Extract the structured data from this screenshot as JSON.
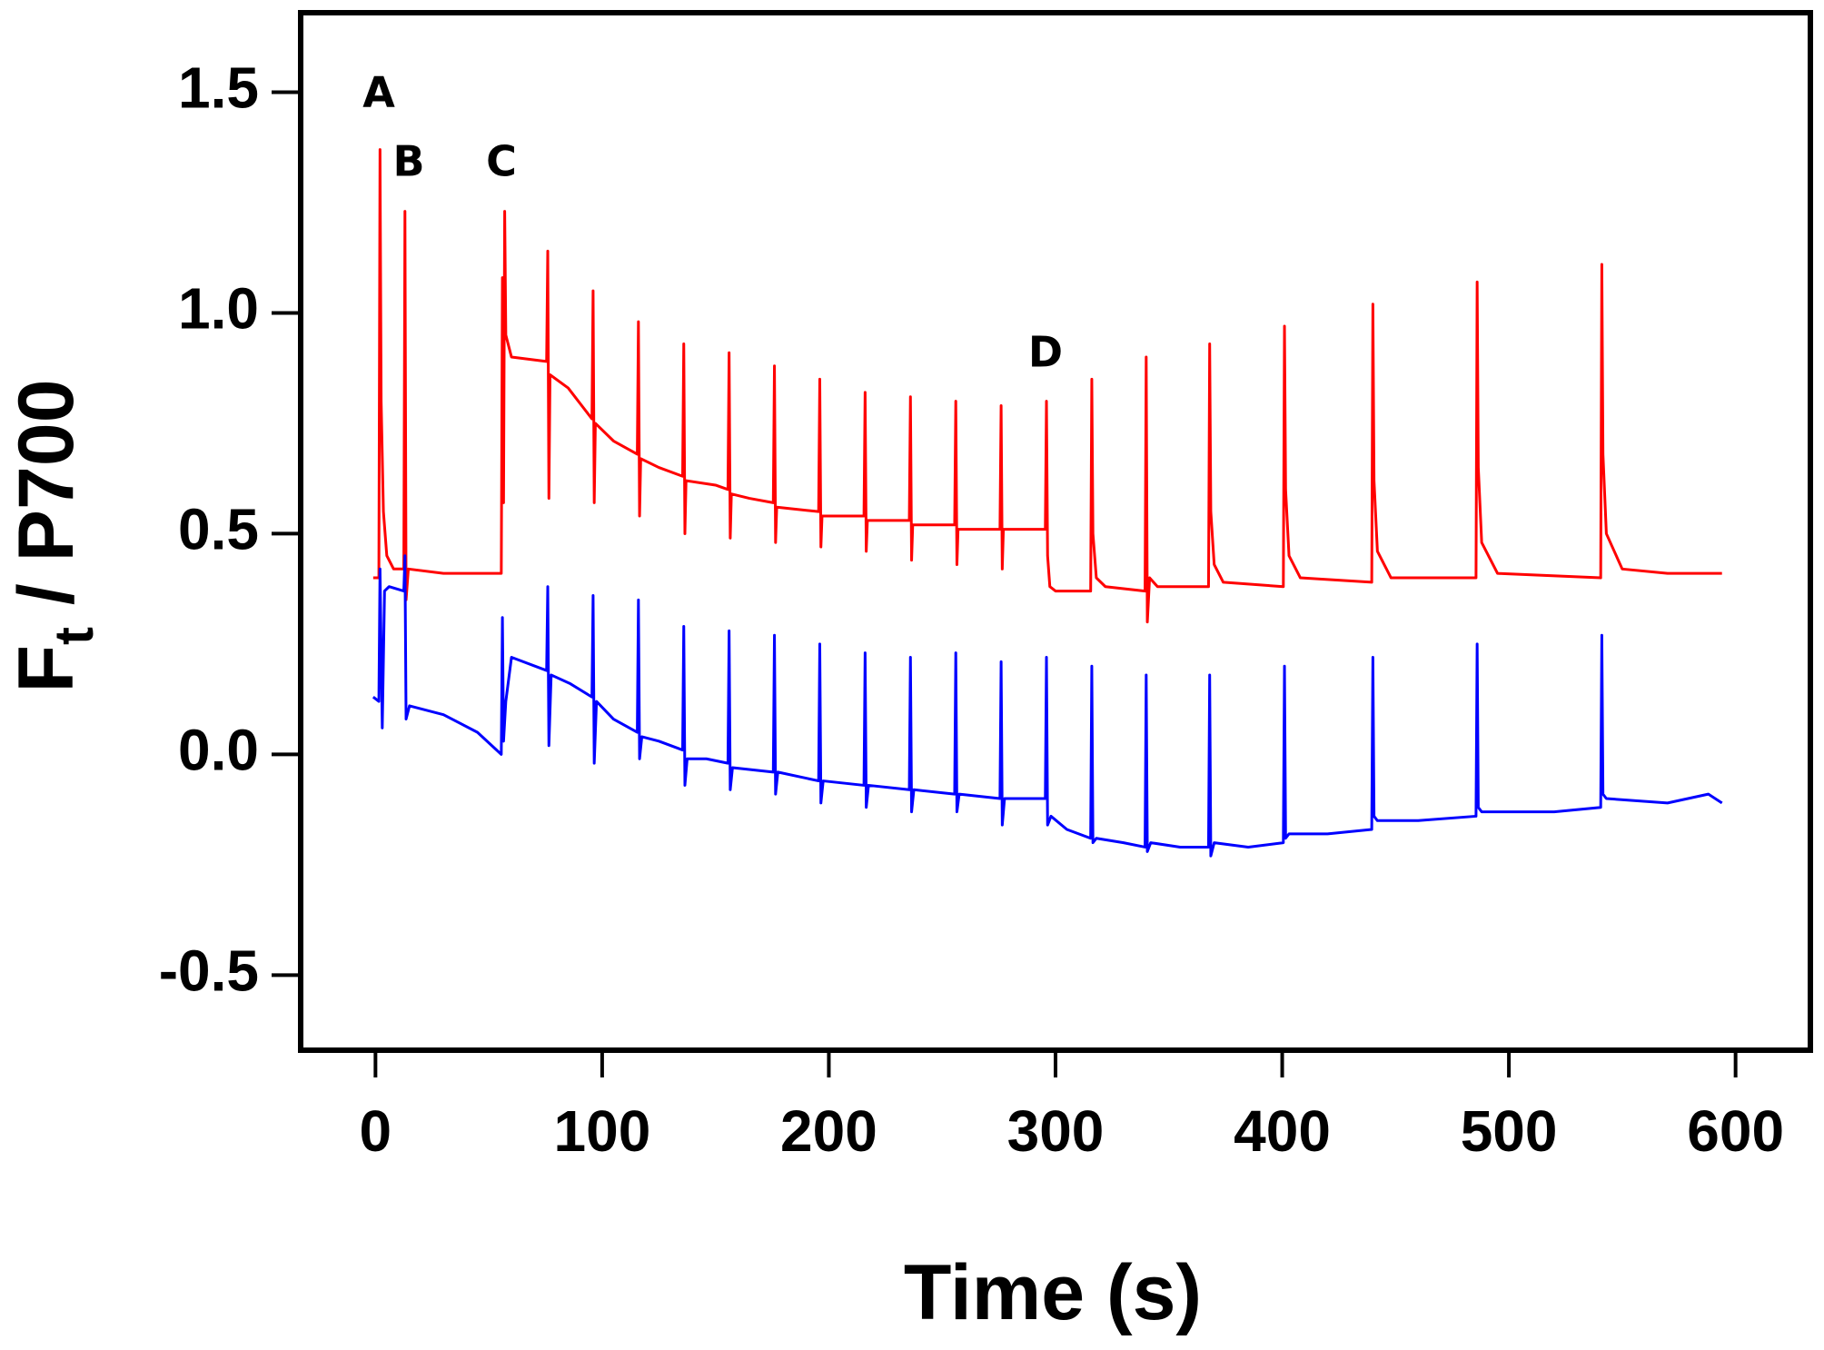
{
  "chart_data": {
    "type": "line",
    "xlabel": "Time (s)",
    "ylabel": {
      "base": "F",
      "subscript": "t",
      "rest": " / P700"
    },
    "annotations": [
      "A",
      "B",
      "C",
      "D"
    ],
    "xlim": [
      -33,
      633
    ],
    "ylim": [
      -0.67,
      1.68
    ],
    "xticks": [
      0,
      100,
      200,
      300,
      400,
      500,
      600
    ],
    "yticks": [
      -0.5,
      {
        "value": 0,
        "label": "0.0"
      },
      0.5,
      {
        "value": 1,
        "label": "1.0"
      },
      1.5
    ],
    "grid": false,
    "series": [
      {
        "color": "#ff0000",
        "x": [
          -1,
          1.5,
          2,
          2.5,
          3.5,
          5,
          8,
          12.5,
          13,
          13.5,
          14.5,
          30,
          55.5,
          56,
          56.5,
          57,
          57.5,
          60,
          75.5,
          76,
          76.5,
          77,
          85,
          95.5,
          96,
          96.5,
          97,
          105,
          115.5,
          116,
          116.5,
          117,
          125,
          135.5,
          136,
          136.5,
          137,
          150,
          155.5,
          156,
          156.5,
          157,
          165,
          175.5,
          176,
          176.5,
          177,
          195.5,
          196,
          196.5,
          197,
          215.5,
          216,
          216.5,
          217,
          235.5,
          236,
          236.5,
          237,
          255.5,
          256,
          256.5,
          257,
          275.5,
          276,
          276.5,
          277,
          295.5,
          296,
          296.5,
          297.5,
          300,
          315.5,
          316,
          316.5,
          318,
          322,
          339.5,
          340,
          340.5,
          341.5,
          345,
          367.5,
          368,
          368.5,
          370,
          374,
          400.5,
          401,
          401.5,
          403,
          408,
          439.5,
          440,
          440.5,
          442,
          448,
          485.5,
          486,
          486.5,
          488,
          495,
          540.5,
          541,
          541.5,
          543,
          550,
          570,
          594
        ],
        "values": [
          0.4,
          0.4,
          1.37,
          0.8,
          0.55,
          0.45,
          0.42,
          0.42,
          1.23,
          0.35,
          0.42,
          0.41,
          0.41,
          1.08,
          0.57,
          1.23,
          0.95,
          0.9,
          0.89,
          1.14,
          0.58,
          0.86,
          0.83,
          0.76,
          1.05,
          0.57,
          0.75,
          0.71,
          0.68,
          0.98,
          0.54,
          0.67,
          0.65,
          0.63,
          0.93,
          0.5,
          0.62,
          0.61,
          0.6,
          0.91,
          0.49,
          0.59,
          0.58,
          0.57,
          0.88,
          0.48,
          0.56,
          0.55,
          0.85,
          0.47,
          0.54,
          0.54,
          0.82,
          0.46,
          0.53,
          0.53,
          0.81,
          0.44,
          0.52,
          0.52,
          0.8,
          0.43,
          0.51,
          0.51,
          0.79,
          0.42,
          0.51,
          0.51,
          0.8,
          0.45,
          0.38,
          0.37,
          0.37,
          0.85,
          0.5,
          0.4,
          0.38,
          0.37,
          0.9,
          0.3,
          0.4,
          0.38,
          0.38,
          0.93,
          0.55,
          0.43,
          0.39,
          0.38,
          0.97,
          0.6,
          0.45,
          0.4,
          0.39,
          1.02,
          0.62,
          0.46,
          0.4,
          0.4,
          1.07,
          0.65,
          0.48,
          0.41,
          0.4,
          1.11,
          0.68,
          0.5,
          0.42,
          0.41,
          0.41
        ]
      },
      {
        "color": "#0000ff",
        "x": [
          -1,
          1.5,
          2,
          3,
          4,
          6,
          12.5,
          13,
          13.5,
          15,
          30,
          45,
          55.5,
          56,
          56.5,
          57.5,
          60,
          75.5,
          76,
          76.5,
          77.5,
          86,
          95.5,
          96,
          96.5,
          97.5,
          105,
          115.5,
          116,
          116.5,
          117.5,
          125,
          135.5,
          136,
          136.5,
          137.5,
          146,
          155.5,
          156,
          156.5,
          157.5,
          175.5,
          176,
          176.5,
          177.5,
          195.5,
          196,
          196.5,
          197.5,
          215.5,
          216,
          216.5,
          217.5,
          235.5,
          236,
          236.5,
          237.5,
          255.5,
          256,
          256.5,
          257.5,
          275.5,
          276,
          276.5,
          277.5,
          295.5,
          296,
          296.5,
          298,
          305,
          315.5,
          316,
          316.5,
          318,
          330,
          339.5,
          340,
          340.5,
          342,
          355,
          367.5,
          368,
          368.5,
          370,
          385,
          400.5,
          401,
          401.5,
          403,
          420,
          439.5,
          440,
          440.5,
          442,
          460,
          485.5,
          486,
          486.5,
          488,
          520,
          540.5,
          541,
          541.5,
          543,
          570,
          588,
          594
        ],
        "values": [
          0.13,
          0.12,
          0.42,
          0.06,
          0.37,
          0.38,
          0.37,
          0.45,
          0.08,
          0.11,
          0.09,
          0.05,
          0.0,
          0.31,
          0.03,
          0.12,
          0.22,
          0.19,
          0.38,
          0.02,
          0.18,
          0.16,
          0.13,
          0.36,
          -0.02,
          0.12,
          0.08,
          0.05,
          0.35,
          -0.01,
          0.04,
          0.03,
          0.01,
          0.29,
          -0.07,
          -0.01,
          -0.01,
          -0.02,
          0.28,
          -0.08,
          -0.03,
          -0.04,
          0.27,
          -0.09,
          -0.04,
          -0.06,
          0.25,
          -0.11,
          -0.06,
          -0.07,
          0.23,
          -0.12,
          -0.07,
          -0.08,
          0.22,
          -0.13,
          -0.08,
          -0.09,
          0.23,
          -0.13,
          -0.09,
          -0.1,
          0.21,
          -0.16,
          -0.1,
          -0.1,
          0.22,
          -0.16,
          -0.14,
          -0.17,
          -0.19,
          0.2,
          -0.2,
          -0.19,
          -0.2,
          -0.21,
          0.18,
          -0.22,
          -0.2,
          -0.21,
          -0.21,
          0.18,
          -0.23,
          -0.2,
          -0.21,
          -0.2,
          0.2,
          -0.19,
          -0.18,
          -0.18,
          -0.17,
          0.22,
          -0.14,
          -0.15,
          -0.15,
          -0.14,
          0.25,
          -0.12,
          -0.13,
          -0.13,
          -0.12,
          0.27,
          -0.09,
          -0.1,
          -0.11,
          -0.09,
          -0.11
        ]
      }
    ]
  }
}
